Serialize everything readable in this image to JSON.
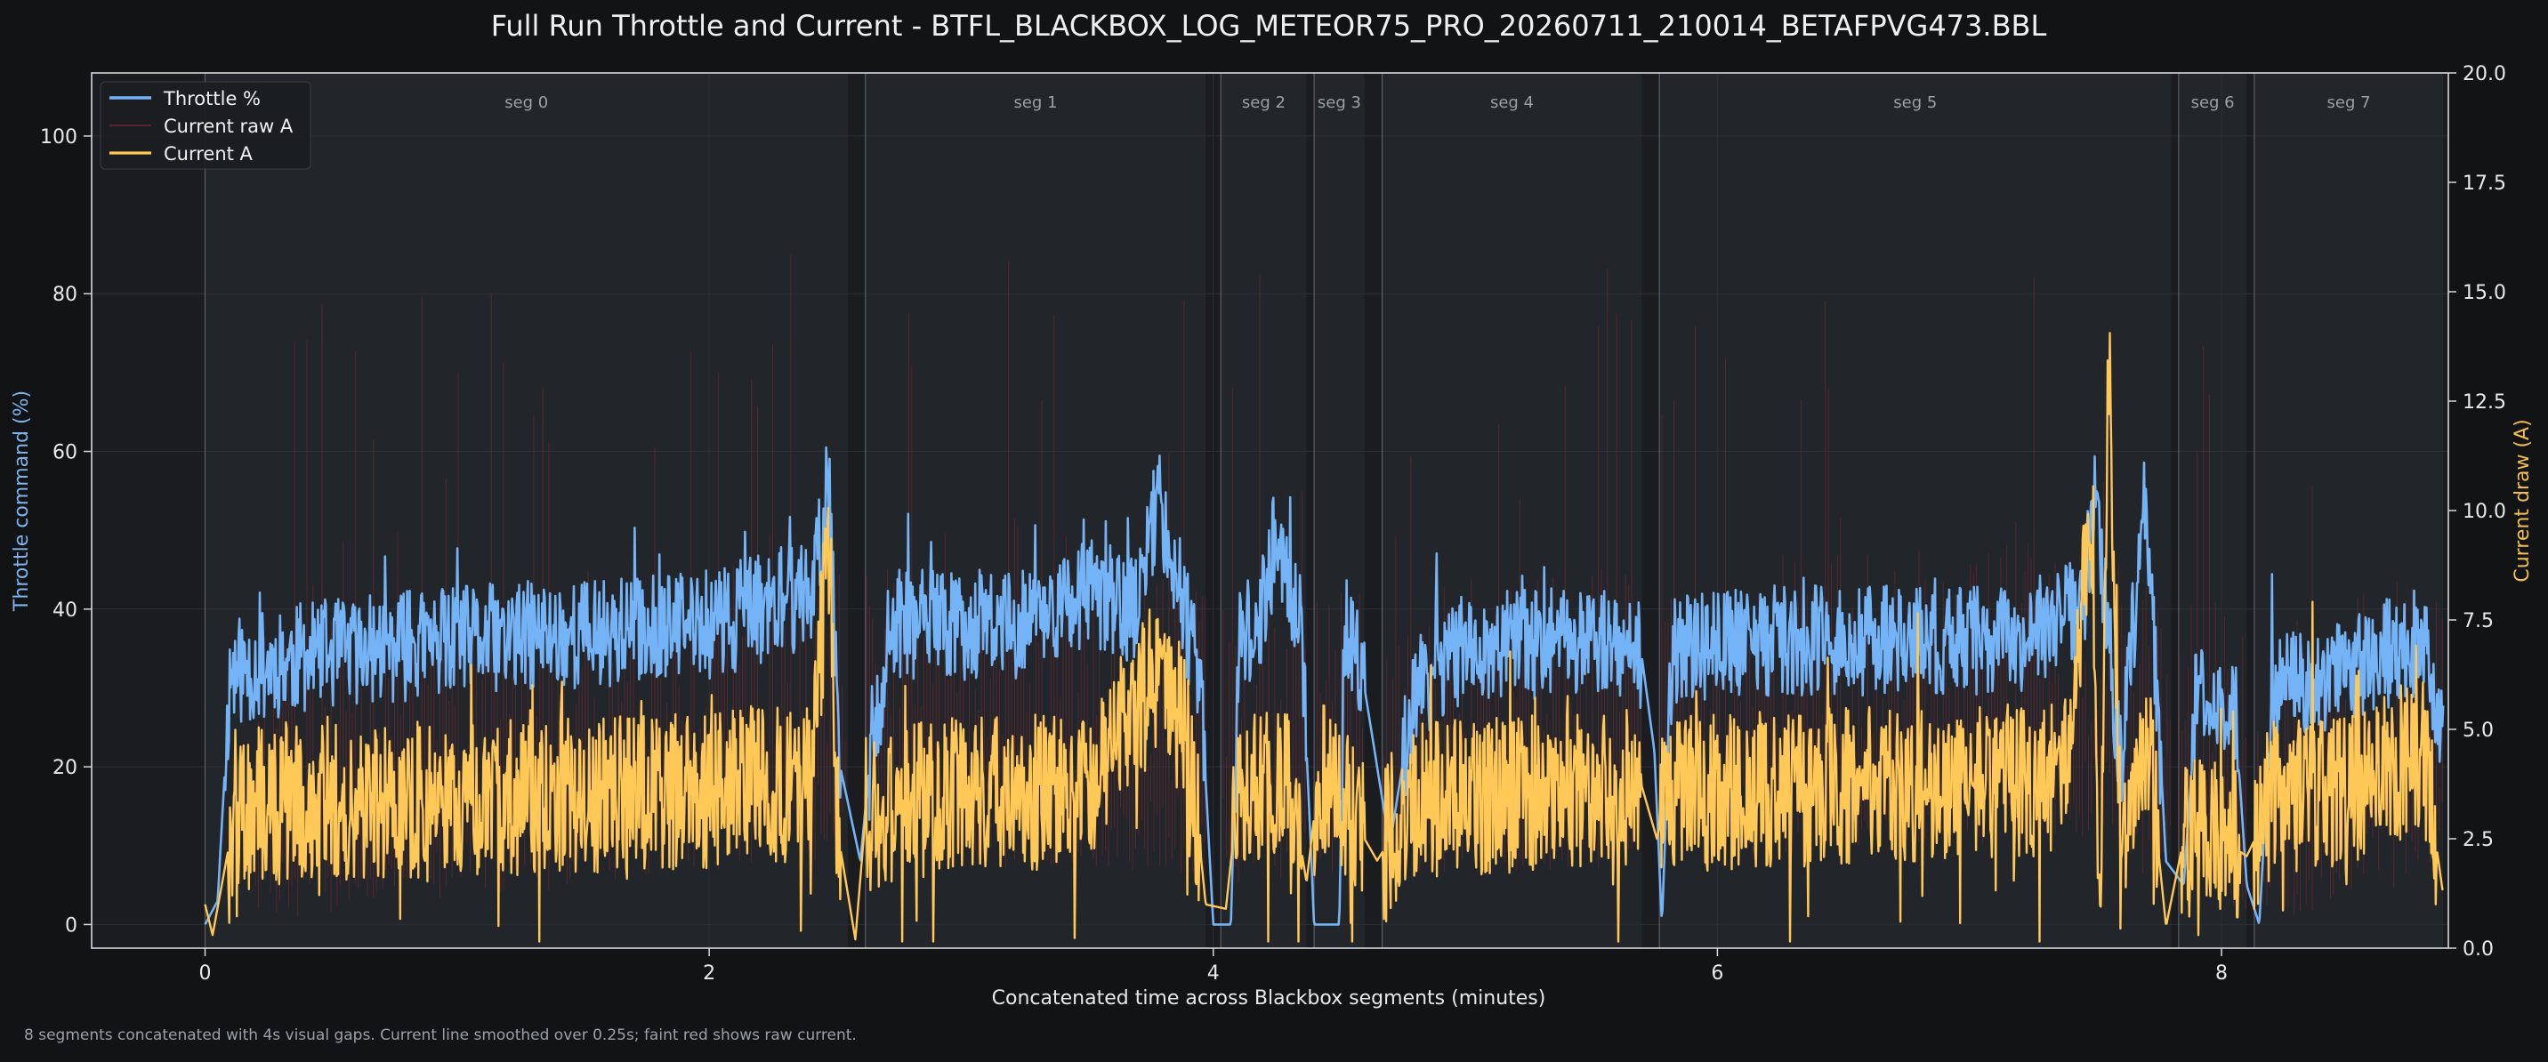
{
  "chart_data": {
    "type": "line",
    "title": "Full Run Throttle and Current - BTFL_BLACKBOX_LOG_METEOR75_PRO_20260711_210014_BETAFPVG473.BBL",
    "xlabel": "Concatenated time across Blackbox segments (minutes)",
    "ylabel": "Throttle command (%)",
    "ylabel_right": "Current draw (A)",
    "xlim": [
      -0.45,
      8.9
    ],
    "ylim": [
      -3,
      108
    ],
    "ylim_right": [
      0,
      20
    ],
    "x_ticks": [
      "0",
      "2",
      "4",
      "6",
      "8"
    ],
    "y_ticks": [
      "0",
      "20",
      "40",
      "60",
      "80",
      "100"
    ],
    "y_right_ticks": [
      "0.0",
      "2.5",
      "5.0",
      "7.5",
      "10.0",
      "12.5",
      "15.0",
      "17.5",
      "20.0"
    ],
    "grid": true,
    "legend_position": "top-left",
    "legend": [
      "Throttle %",
      "Current raw A",
      "Current A"
    ],
    "colors": {
      "throttle": "#74b3f6",
      "current_raw": "#7a2e34",
      "current": "#ffc857",
      "segment_band_dark": "#1a1c20",
      "segment_band_light": "#222529"
    },
    "segments": [
      {
        "label": "seg 0",
        "start": 0.0,
        "end": 2.55
      },
      {
        "label": "seg 1",
        "start": 2.62,
        "end": 3.97
      },
      {
        "label": "seg 2",
        "start": 4.03,
        "end": 4.37
      },
      {
        "label": "seg 3",
        "start": 4.4,
        "end": 4.6
      },
      {
        "label": "seg 4",
        "start": 4.67,
        "end": 5.7
      },
      {
        "label": "seg 5",
        "start": 5.77,
        "end": 7.8
      },
      {
        "label": "seg 6",
        "start": 7.83,
        "end": 8.1
      },
      {
        "label": "seg 7",
        "start": 8.13,
        "end": 8.88
      }
    ],
    "series": [
      {
        "name": "Throttle %",
        "axis": "left",
        "smoothing_s": 0,
        "keypoints": [
          [
            0,
            0
          ],
          [
            0.05,
            3
          ],
          [
            0.1,
            32
          ],
          [
            0.4,
            34
          ],
          [
            1.0,
            36
          ],
          [
            2.0,
            38
          ],
          [
            2.4,
            42
          ],
          [
            2.48,
            55
          ],
          [
            2.52,
            20
          ],
          [
            2.6,
            8
          ],
          [
            2.65,
            25
          ],
          [
            2.75,
            38
          ],
          [
            3.2,
            38
          ],
          [
            3.5,
            42
          ],
          [
            3.7,
            40
          ],
          [
            3.78,
            55
          ],
          [
            3.95,
            30
          ],
          [
            4.0,
            0
          ],
          [
            4.07,
            0
          ],
          [
            4.1,
            35
          ],
          [
            4.2,
            40
          ],
          [
            4.25,
            50
          ],
          [
            4.35,
            37
          ],
          [
            4.4,
            0
          ],
          [
            4.5,
            0
          ],
          [
            4.52,
            38
          ],
          [
            4.6,
            30
          ],
          [
            4.7,
            10
          ],
          [
            4.8,
            30
          ],
          [
            5.0,
            35
          ],
          [
            5.5,
            36
          ],
          [
            5.7,
            34
          ],
          [
            5.75,
            22
          ],
          [
            5.78,
            0
          ],
          [
            5.82,
            35
          ],
          [
            6.2,
            36
          ],
          [
            6.8,
            36
          ],
          [
            7.2,
            36
          ],
          [
            7.45,
            40
          ],
          [
            7.5,
            55
          ],
          [
            7.6,
            20
          ],
          [
            7.7,
            55
          ],
          [
            7.78,
            8
          ],
          [
            7.85,
            5
          ],
          [
            7.9,
            28
          ],
          [
            8.05,
            29
          ],
          [
            8.1,
            5
          ],
          [
            8.15,
            0
          ],
          [
            8.2,
            30
          ],
          [
            8.5,
            32
          ],
          [
            8.8,
            36
          ],
          [
            8.88,
            25
          ]
        ]
      },
      {
        "name": "Current raw A",
        "axis": "right",
        "raw": true,
        "keypoints": [
          [
            0,
            0.5
          ],
          [
            0.1,
            2.5
          ],
          [
            2.5,
            4.0
          ],
          [
            3.97,
            3.5
          ],
          [
            4.4,
            3.5
          ],
          [
            5.7,
            3.8
          ],
          [
            7.5,
            4.5
          ],
          [
            7.8,
            3.0
          ],
          [
            8.1,
            2.5
          ],
          [
            8.88,
            3.5
          ]
        ]
      },
      {
        "name": "Current A",
        "axis": "right",
        "smoothing_s": 0.25,
        "keypoints": [
          [
            0,
            1.0
          ],
          [
            0.03,
            0.3
          ],
          [
            0.1,
            2.5
          ],
          [
            0.2,
            3.3
          ],
          [
            0.8,
            3.4
          ],
          [
            1.5,
            3.5
          ],
          [
            2.0,
            3.6
          ],
          [
            2.4,
            3.8
          ],
          [
            2.48,
            9.5
          ],
          [
            2.5,
            3.0
          ],
          [
            2.58,
            0.2
          ],
          [
            2.62,
            3.0
          ],
          [
            2.9,
            3.5
          ],
          [
            3.5,
            3.6
          ],
          [
            3.75,
            6.0
          ],
          [
            3.9,
            5.0
          ],
          [
            3.97,
            1.0
          ],
          [
            4.05,
            0.9
          ],
          [
            4.1,
            3.6
          ],
          [
            4.3,
            4.0
          ],
          [
            4.37,
            1.5
          ],
          [
            4.42,
            4.0
          ],
          [
            4.55,
            3.0
          ],
          [
            4.65,
            2.0
          ],
          [
            4.8,
            3.4
          ],
          [
            5.2,
            3.5
          ],
          [
            5.7,
            3.7
          ],
          [
            5.76,
            2.5
          ],
          [
            5.8,
            3.5
          ],
          [
            6.5,
            3.7
          ],
          [
            7.0,
            3.8
          ],
          [
            7.4,
            3.9
          ],
          [
            7.48,
            10.0
          ],
          [
            7.52,
            0.5
          ],
          [
            7.55,
            14.0
          ],
          [
            7.6,
            2.0
          ],
          [
            7.7,
            5.0
          ],
          [
            7.78,
            0.5
          ],
          [
            7.85,
            2.5
          ],
          [
            8.0,
            2.5
          ],
          [
            8.1,
            2.1
          ],
          [
            8.15,
            2.7
          ],
          [
            8.2,
            3.5
          ],
          [
            8.5,
            3.6
          ],
          [
            8.8,
            4.5
          ],
          [
            8.88,
            1.2
          ]
        ]
      }
    ],
    "annotation": "8 segments concatenated with 4s visual gaps. Current line smoothed over 0.25s; faint red shows raw current."
  }
}
